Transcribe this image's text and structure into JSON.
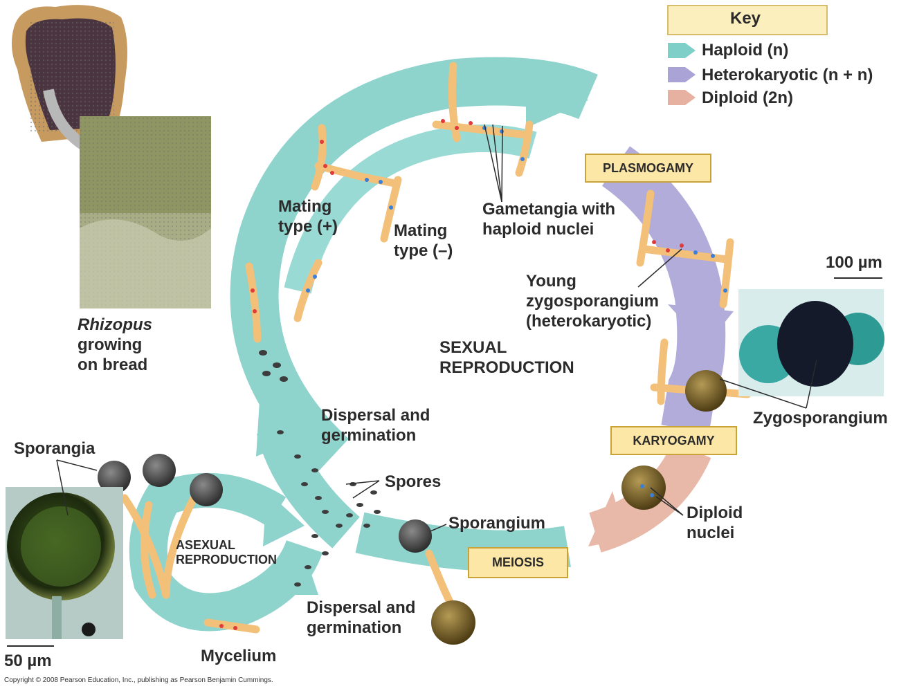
{
  "key": {
    "title": "Key",
    "items": [
      {
        "label": "Haploid (n)",
        "color": "#7fcfc9"
      },
      {
        "label": "Heterokaryotic (n + n)",
        "color": "#a9a3d6"
      },
      {
        "label": "Diploid (2n)",
        "color": "#e6b1a0"
      }
    ]
  },
  "stages": {
    "plasmogamy": "PLASMOGAMY",
    "karyogamy": "KARYOGAMY",
    "meiosis": "MEIOSIS"
  },
  "labels": {
    "rhizopus_1": "Rhizopus",
    "rhizopus_2": "growing",
    "rhizopus_3": "on bread",
    "mating_plus_1": "Mating",
    "mating_plus_2": "type (+)",
    "mating_minus_1": "Mating",
    "mating_minus_2": "type (–)",
    "gametangia_1": "Gametangia with",
    "gametangia_2": "haploid nuclei",
    "young_1": "Young",
    "young_2": "zygosporangium",
    "young_3": "(heterokaryotic)",
    "sexual_1": "SEXUAL",
    "sexual_2": "REPRODUCTION",
    "zygosporangium": "Zygosporangium",
    "dispersal_top_1": "Dispersal and",
    "dispersal_top_2": "germination",
    "spores": "Spores",
    "sporangium": "Sporangium",
    "sporangia": "Sporangia",
    "asexual_1": "ASEXUAL",
    "asexual_2": "REPRODUCTION",
    "diploid_1": "Diploid",
    "diploid_2": "nuclei",
    "dispersal_bot_1": "Dispersal and",
    "dispersal_bot_2": "germination",
    "mycelium": "Mycelium"
  },
  "scales": {
    "micro_100": "100 µm",
    "micro_50": "50 µm"
  },
  "copyright": "Copyright © 2008 Pearson Education, Inc., publishing as Pearson Benjamin Cummings."
}
